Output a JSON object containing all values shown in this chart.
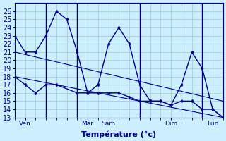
{
  "title": "Température (°c)",
  "bg_color": "#cceeff",
  "line_color": "#00008b",
  "grid_color": "#99cccc",
  "ylim": [
    13,
    27
  ],
  "yticks": [
    13,
    14,
    15,
    16,
    17,
    18,
    19,
    20,
    21,
    22,
    23,
    24,
    25,
    26
  ],
  "xlim": [
    0,
    10
  ],
  "x_tick_positions": [
    0.5,
    3.5,
    4.5,
    7.5,
    9.5
  ],
  "x_tick_labels": [
    "Ven",
    "Mar",
    "Sam",
    "Dim",
    "Lun"
  ],
  "x_vlines": [
    1.5,
    3.0,
    6.0,
    9.0
  ],
  "series1_x": [
    0,
    0.5,
    1.0,
    1.5,
    2.0,
    2.5,
    3.0,
    3.5,
    4.0,
    4.5,
    5.0,
    5.5,
    6.0,
    6.5,
    7.0,
    7.5,
    8.0,
    8.5,
    9.0,
    9.5,
    10.0
  ],
  "series1_y": [
    23,
    21,
    21,
    23,
    26,
    25,
    21,
    16,
    17,
    22,
    24,
    22,
    17,
    15,
    15,
    14.5,
    17,
    21,
    19,
    14,
    13
  ],
  "series2_x": [
    0,
    0.5,
    1.0,
    1.5,
    2.0,
    3.0,
    3.5,
    4.0,
    4.5,
    5.0,
    5.5,
    6.0,
    6.5,
    7.0,
    7.5,
    8.0,
    8.5,
    9.0,
    9.5,
    10.0
  ],
  "series2_y": [
    18,
    17,
    16,
    17,
    17,
    16,
    16,
    16,
    16,
    16,
    15.5,
    15,
    15,
    15,
    14.5,
    15,
    15,
    14,
    14,
    13
  ],
  "trend1_x": [
    0,
    10.0
  ],
  "trend1_y": [
    21,
    15
  ],
  "trend2_x": [
    0,
    10.0
  ],
  "trend2_y": [
    18,
    13
  ],
  "ylabel_fontsize": 7,
  "xlabel_fontsize": 8,
  "tick_fontsize": 6.5
}
